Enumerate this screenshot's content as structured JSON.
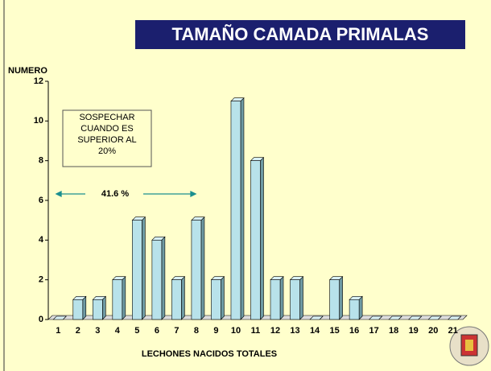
{
  "chart_data": {
    "type": "bar3d",
    "title": "TAMAÑO CAMADA PRIMALAS",
    "y_label": "NUMERO",
    "x_label": "LECHONES NACIDOS TOTALES",
    "categories": [
      1,
      2,
      3,
      4,
      5,
      6,
      7,
      8,
      9,
      10,
      11,
      12,
      13,
      14,
      15,
      16,
      17,
      18,
      19,
      20,
      21
    ],
    "values": [
      0,
      1,
      1,
      2,
      5,
      4,
      2,
      5,
      2,
      11,
      8,
      2,
      2,
      0,
      2,
      1,
      0,
      0,
      0,
      0,
      0
    ],
    "color": "#b8e2ea",
    "ylim": [
      0,
      12
    ],
    "yticks": [
      0,
      2,
      4,
      6,
      8,
      10,
      12
    ],
    "annotations": [
      "SOSPECHAR",
      "CUANDO ES",
      "SUPERIOR AL",
      "20%"
    ],
    "arrow_label": "41.6 %"
  }
}
